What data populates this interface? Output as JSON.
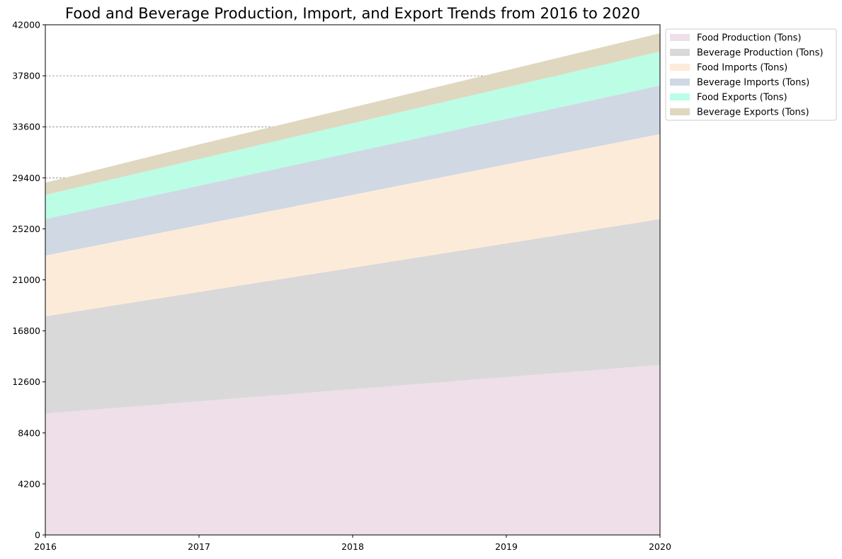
{
  "chart_data": {
    "type": "area",
    "stacked": true,
    "title": "Food and Beverage Production, Import, and Export Trends from 2016 to 2020",
    "xlabel": "",
    "ylabel": "",
    "x": [
      "2016",
      "2017",
      "2018",
      "2019",
      "2020"
    ],
    "ylim": [
      0,
      42000
    ],
    "yticks": [
      "0",
      "4200",
      "8400",
      "12600",
      "16800",
      "21000",
      "25200",
      "29400",
      "33600",
      "37800",
      "42000"
    ],
    "grid": "horizontal-dashed",
    "legend_position": "upper-right-outside",
    "series": [
      {
        "name": "Food Production (Tons)",
        "color": "#eedfe9",
        "values": [
          10000,
          11000,
          12000,
          13000,
          14000
        ]
      },
      {
        "name": "Beverage Production (Tons)",
        "color": "#d9d9d9",
        "values": [
          8000,
          9000,
          10000,
          11000,
          12000
        ]
      },
      {
        "name": "Food Imports (Tons)",
        "color": "#fdebda",
        "values": [
          5000,
          5500,
          6000,
          6500,
          7000
        ]
      },
      {
        "name": "Beverage Imports (Tons)",
        "color": "#d0d8e4",
        "values": [
          3000,
          3250,
          3500,
          3750,
          4000
        ]
      },
      {
        "name": "Food Exports (Tons)",
        "color": "#bcfde6",
        "values": [
          2000,
          2200,
          2400,
          2600,
          2800
        ]
      },
      {
        "name": "Beverage Exports (Tons)",
        "color": "#dfd7bf",
        "values": [
          1000,
          1200,
          1300,
          1400,
          1500
        ]
      }
    ]
  }
}
